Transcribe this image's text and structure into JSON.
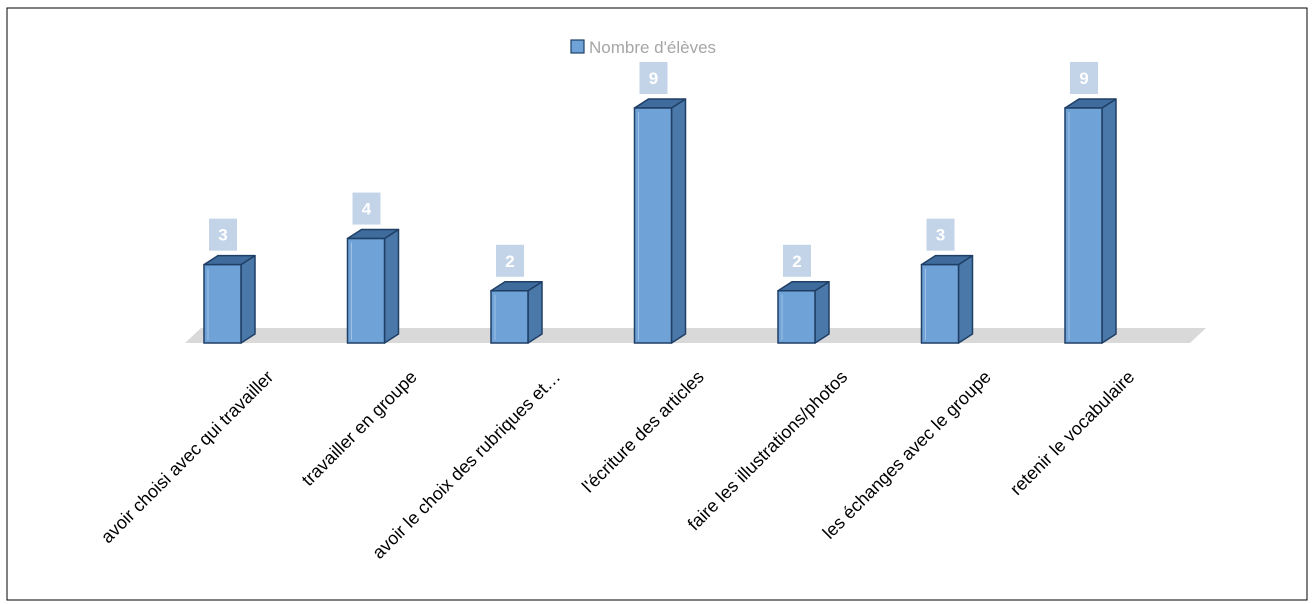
{
  "chart_data": {
    "type": "bar",
    "categories": [
      "avoir choisi avec qui travailler",
      "travailler en groupe",
      "avoir le choix des rubriques et…",
      "l'écriture des articles",
      "faire les illustrations/photos",
      "les échanges avec le groupe",
      "retenir le vocabulaire"
    ],
    "series": [
      {
        "name": "Nombre d'élèves",
        "values": [
          3,
          4,
          2,
          9,
          2,
          3,
          9
        ]
      }
    ],
    "ylim": [
      0,
      9
    ],
    "grid": false,
    "legend": "top-center",
    "data_labels": true,
    "colors": {
      "bar_front": "#6fa2d6",
      "bar_side": "#4a78a8",
      "bar_top": "#3f6c9c",
      "bar_edge": "#1f3f66",
      "floor": "#d9d9d9",
      "label_box": "#b9cde5"
    }
  }
}
